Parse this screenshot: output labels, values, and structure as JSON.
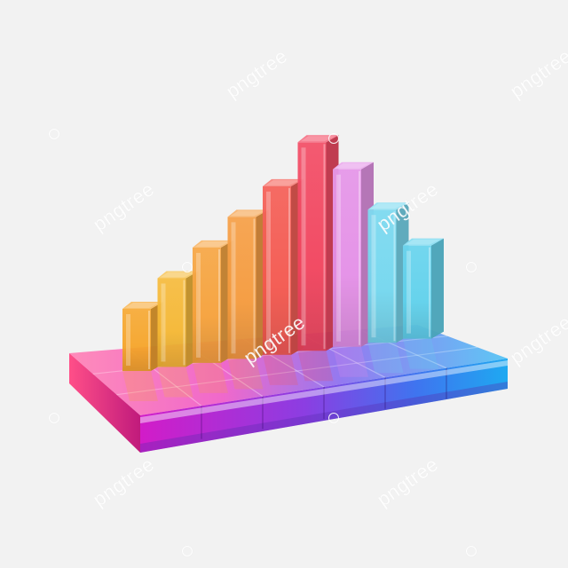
{
  "image": {
    "subject": "3d-bar-chart-illustration",
    "background_color": "#f2f2f2",
    "bar_levels": [
      0.28,
      0.4,
      0.52,
      0.64,
      0.76,
      0.94,
      0.8,
      0.6,
      0.42
    ],
    "bar_colors": [
      "#f6a52a",
      "#f5b733",
      "#f6a13a",
      "#f59a3c",
      "#f4574e",
      "#f2435d",
      "#e48fe7",
      "#73d7ef",
      "#5fd1ec"
    ],
    "base_colors": [
      "#ff6fa3",
      "#d7168b",
      "#c43fe4",
      "#7a49e6",
      "#3f7df0",
      "#1fb3f0"
    ]
  },
  "watermark": {
    "text": "pngtree"
  }
}
